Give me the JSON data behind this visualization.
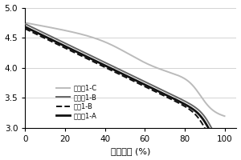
{
  "title": "",
  "xlabel": "容量保持 (%)",
  "ylabel": "",
  "xlim": [
    0,
    106
  ],
  "ylim": [
    3,
    5
  ],
  "yticks": [
    3,
    3.5,
    4,
    4.5,
    5
  ],
  "xticks": [
    0,
    20,
    40,
    60,
    80,
    100
  ],
  "legend": [
    {
      "label": "实施例1-A",
      "color": "#111111",
      "lw": 2.0,
      "ls": "solid"
    },
    {
      "label": "实施例1-B",
      "color": "#666666",
      "lw": 1.4,
      "ls": "solid"
    },
    {
      "label": "实施例1-C",
      "color": "#bbbbbb",
      "lw": 1.4,
      "ls": "solid"
    },
    {
      "label": "对比1-B",
      "color": "#111111",
      "lw": 1.4,
      "ls": "dashed"
    }
  ],
  "background_color": "#ffffff",
  "grid_color": "#cccccc"
}
